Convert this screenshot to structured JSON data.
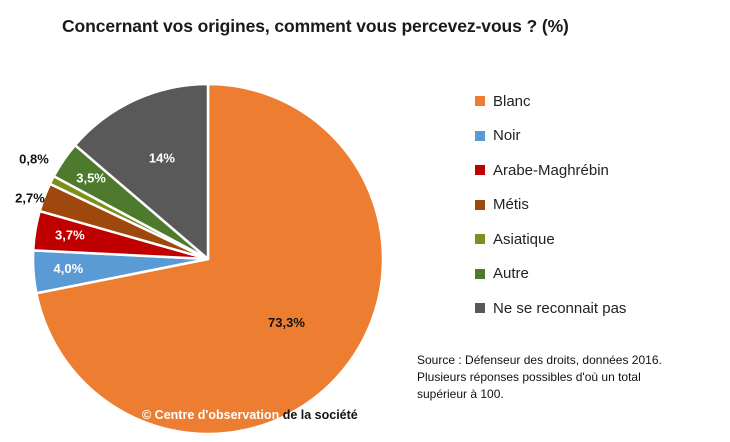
{
  "chart_data": {
    "type": "pie",
    "title": "Concernant vos origines, comment vous percevez-vous ? (%)",
    "slices": [
      {
        "label": "Blanc",
        "value": 73.3,
        "display": "73,3%",
        "color": "#ED7D31"
      },
      {
        "label": "Noir",
        "value": 4.0,
        "display": "4,0%",
        "color": "#5B9BD5"
      },
      {
        "label": "Arabe-Maghrébin",
        "value": 3.7,
        "display": "3,7%",
        "color": "#C00000"
      },
      {
        "label": "Métis",
        "value": 2.7,
        "display": "2,7%",
        "color": "#9E480E"
      },
      {
        "label": "Asiatique",
        "value": 0.8,
        "display": "0,8%",
        "color": "#7F8F1E"
      },
      {
        "label": "Autre",
        "value": 3.5,
        "display": "3,5%",
        "color": "#4E7A2E"
      },
      {
        "label": "Ne se reconnait pas",
        "value": 14,
        "display": "14%",
        "color": "#595959"
      }
    ],
    "legend_position": "right"
  },
  "source": {
    "line1": "Source : Défenseur des droits, données 2016.",
    "line2": "Plusieurs réponses possibles d'où un total",
    "line3": "supérieur à 100."
  },
  "copyright": {
    "light": "© Centre  d'observation",
    "dark": " de la société"
  }
}
